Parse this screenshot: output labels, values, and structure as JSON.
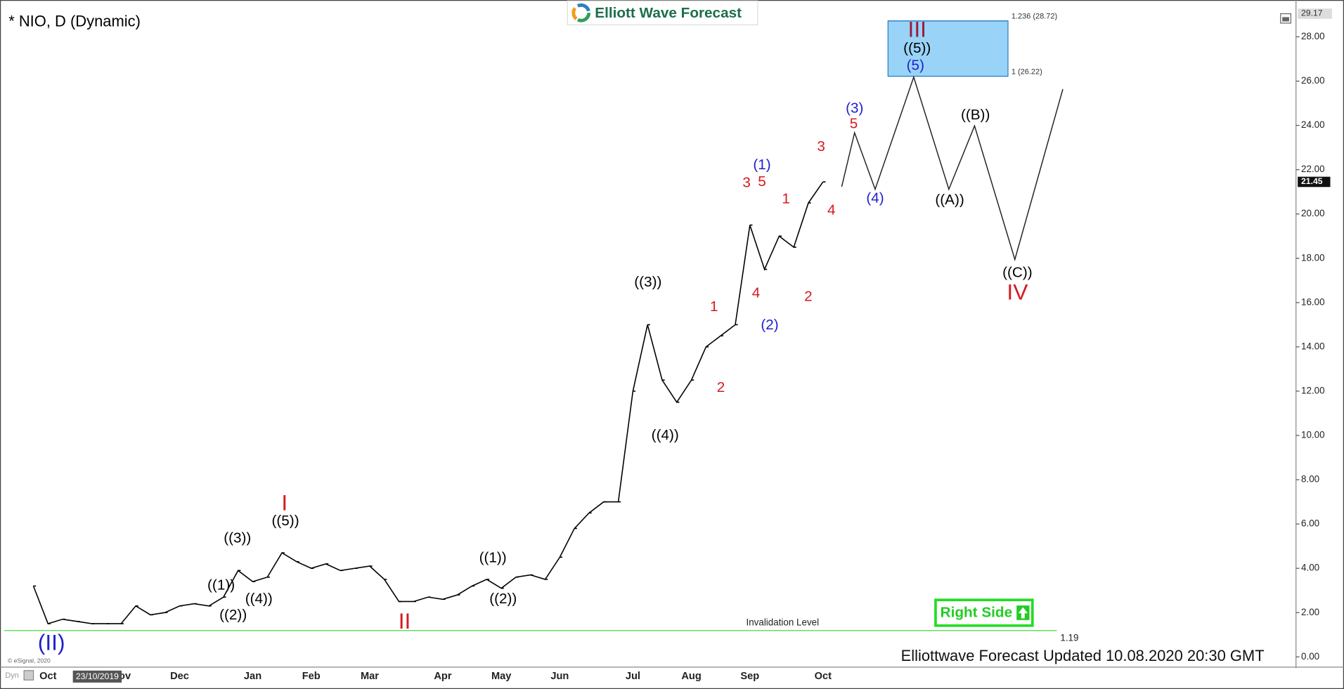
{
  "chart_data": {
    "type": "line",
    "title": "* NIO, D (Dynamic)",
    "logo": "Elliott Wave Forecast",
    "categories": [
      null,
      "Oct",
      null,
      null,
      null,
      null,
      "Nov",
      null,
      null,
      null,
      "Dec",
      null,
      null,
      null,
      null,
      "Jan",
      null,
      null,
      null,
      "Feb",
      null,
      null,
      null,
      "Mar",
      null,
      null,
      null,
      null,
      "Apr",
      null,
      null,
      null,
      "May",
      null,
      null,
      null,
      "Jun",
      null,
      null,
      null,
      null,
      "Jul",
      null,
      null,
      null,
      "Aug",
      null,
      null,
      null,
      "Sep",
      null,
      null,
      null,
      null,
      "Oct"
    ],
    "values": [
      3.2,
      1.5,
      1.7,
      1.6,
      1.5,
      1.5,
      1.5,
      2.3,
      1.9,
      2.0,
      2.3,
      2.4,
      2.3,
      2.7,
      3.9,
      3.4,
      3.6,
      4.7,
      4.3,
      4.0,
      4.2,
      3.9,
      4.0,
      4.1,
      3.5,
      2.5,
      2.5,
      2.7,
      2.6,
      2.8,
      3.2,
      3.5,
      3.1,
      3.6,
      3.7,
      3.5,
      4.5,
      5.8,
      6.5,
      7.0,
      7.0,
      12.0,
      15.0,
      12.5,
      11.5,
      12.5,
      14.0,
      14.5,
      15.0,
      19.5,
      17.5,
      19.0,
      18.5,
      20.5,
      21.45
    ],
    "color": "#000000",
    "ylim": [
      0,
      29.17
    ],
    "yticks": [
      {
        "value": 0,
        "label": "0.00"
      },
      {
        "value": 2,
        "label": "2.00"
      },
      {
        "value": 4,
        "label": "4.00"
      },
      {
        "value": 6,
        "label": "6.00"
      },
      {
        "value": 8,
        "label": "8.00"
      },
      {
        "value": 10,
        "label": "10.00"
      },
      {
        "value": 12,
        "label": "12.00"
      },
      {
        "value": 14,
        "label": "14.00"
      },
      {
        "value": 16,
        "label": "16.00"
      },
      {
        "value": 18,
        "label": "18.00"
      },
      {
        "value": 20,
        "label": "20.00"
      },
      {
        "value": 22,
        "label": "22.00"
      },
      {
        "value": 24,
        "label": "24.00"
      },
      {
        "value": 26,
        "label": "26.00"
      },
      {
        "value": 28,
        "label": "28.00"
      }
    ],
    "fib_levels": [
      {
        "value": 28.72,
        "label": "1.236 (28.72)"
      },
      {
        "value": 26.22,
        "label": "1 (26.22)"
      }
    ],
    "fib_color": "#99d3f7",
    "invalidation": {
      "label": "Invalidation Level",
      "value": 1.19,
      "color": "#66dd66"
    },
    "annotations": [
      {
        "text": "((1))",
        "color": "#000000"
      },
      {
        "text": "((2))",
        "color": "#000000"
      },
      {
        "text": "((3))",
        "color": "#000000"
      },
      {
        "text": "((4))",
        "color": "#000000"
      },
      {
        "text": "((5))",
        "color": "#000000"
      },
      {
        "text": "I",
        "color": "#d71920"
      },
      {
        "text": "II",
        "color": "#d71920"
      },
      {
        "text": "(II)",
        "color": "#1f1fcf"
      },
      {
        "text": "((1))",
        "color": "#000000"
      },
      {
        "text": "((2))",
        "color": "#000000"
      },
      {
        "text": "((3))",
        "color": "#000000"
      },
      {
        "text": "((4))",
        "color": "#000000"
      },
      {
        "text": "1",
        "color": "#d71920"
      },
      {
        "text": "2",
        "color": "#d71920"
      },
      {
        "text": "3",
        "color": "#d71920"
      },
      {
        "text": "4",
        "color": "#d71920"
      },
      {
        "text": "5",
        "color": "#d71920"
      },
      {
        "text": "(1)",
        "color": "#1f1fcf"
      },
      {
        "text": "(2)",
        "color": "#1f1fcf"
      },
      {
        "text": "1",
        "color": "#d71920"
      },
      {
        "text": "2",
        "color": "#d71920"
      },
      {
        "text": "3",
        "color": "#d71920"
      },
      {
        "text": "4",
        "color": "#d71920"
      },
      {
        "text": "5",
        "color": "#d71920"
      },
      {
        "text": "(3)",
        "color": "#1f1fcf"
      },
      {
        "text": "(4)",
        "color": "#1f1fcf"
      },
      {
        "text": "III",
        "color": "#9b1b3a"
      },
      {
        "text": "((5))",
        "color": "#000000"
      },
      {
        "text": "(5)",
        "color": "#1f1fcf"
      },
      {
        "text": "((A))",
        "color": "#000000"
      },
      {
        "text": "((B))",
        "color": "#000000"
      },
      {
        "text": "((C))",
        "color": "#000000"
      },
      {
        "text": "IV",
        "color": "#d71920"
      }
    ],
    "button": "Right Side",
    "footer": "Elliottwave Forecast Updated 10.08.2020 20:30 GMT",
    "credit": "© eSignal, 2020",
    "cursor_date": "23/10/2019",
    "corner_label": "Dyn"
  }
}
